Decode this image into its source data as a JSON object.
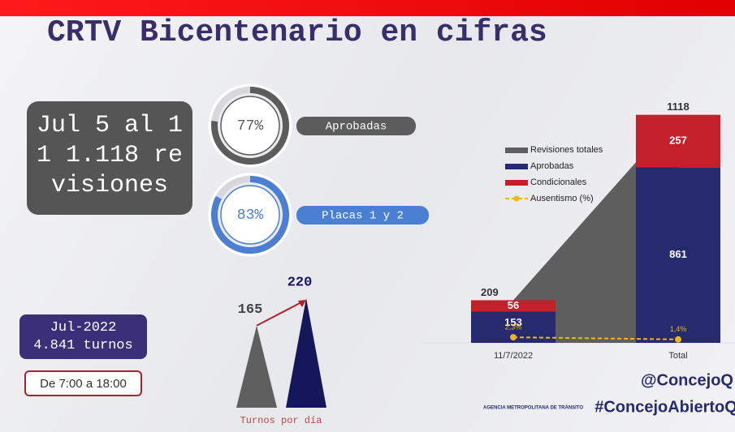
{
  "title": "CRTV Bicentenario en cifras",
  "summary": "Jul 5 al 11 1.118 revisiones",
  "period": {
    "month": "Jul-2022",
    "turns": "4.841 turnos"
  },
  "schedule": "De 7:00 a 18:00",
  "footer": {
    "social": "@ConcejoQ",
    "hashtag": "#ConcejoAbiertoQ",
    "agency": "AGENCIA METROPOLITANA DE TRÁNSITO"
  },
  "chart_data": [
    {
      "type": "donut",
      "categories": [
        "Aprobadas",
        "Placas 1 y 2"
      ],
      "values": [
        77,
        83
      ],
      "value_labels": [
        "77%",
        "83%"
      ],
      "colors": [
        "#5c5c5c",
        "#4a7fd3"
      ]
    },
    {
      "type": "triangle",
      "title": "Turnos por día",
      "values": [
        165,
        220
      ],
      "colors": [
        "#5f5f5f",
        "#16165a"
      ]
    },
    {
      "type": "bar",
      "categories": [
        "11/7/2022",
        "Total"
      ],
      "ylim": [
        0,
        1200
      ],
      "y2lim": [
        0,
        100
      ],
      "series": [
        {
          "name": "Revisiones totales",
          "color": "#5e5e5e",
          "values": [
            209,
            1118
          ]
        },
        {
          "name": "Aprobadas",
          "color": "#262a6e",
          "values": [
            153,
            861
          ]
        },
        {
          "name": "Condicionales",
          "color": "#c4202a",
          "values": [
            56,
            257
          ]
        },
        {
          "name": "Ausentismo (%)",
          "color": "#f0b619",
          "axis": "y2",
          "values": [
            2.3,
            1.4
          ],
          "value_labels": [
            "2,3%",
            "1,4%"
          ]
        }
      ]
    }
  ]
}
